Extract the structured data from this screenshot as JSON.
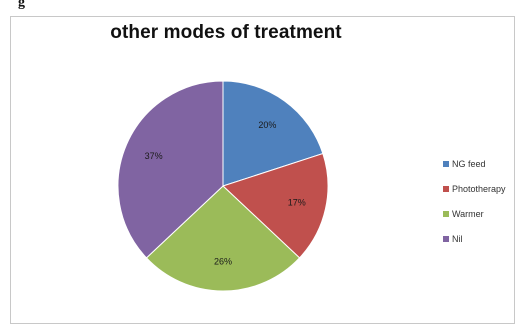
{
  "header_fragment": "g",
  "chart_data": {
    "type": "pie",
    "title": "other modes of treatment",
    "categories": [
      "NG feed",
      "Phototherapy",
      "Warmer",
      "Nil"
    ],
    "values": [
      20,
      17,
      26,
      37
    ],
    "labels": [
      "20%",
      "17%",
      "26%",
      "37%"
    ],
    "colors": [
      "#4f81bd",
      "#c0504d",
      "#9bbb59",
      "#8064a2"
    ],
    "legend": "right",
    "start_angle": "12 o'clock, clockwise"
  }
}
